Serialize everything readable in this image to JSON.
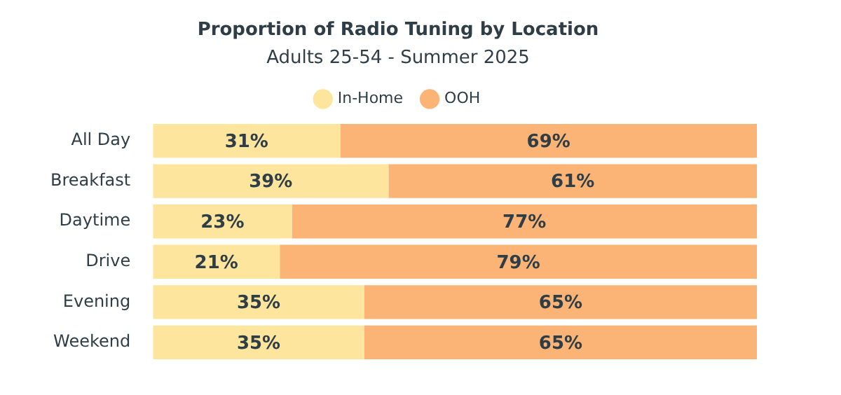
{
  "chart_data": {
    "type": "bar",
    "orientation": "horizontal",
    "stacked": true,
    "title": "Proportion of Radio Tuning by Location",
    "subtitle": "Adults 25-54 - Summer 2025",
    "categories": [
      "All Day",
      "Breakfast",
      "Daytime",
      "Drive",
      "Evening",
      "Weekend"
    ],
    "series": [
      {
        "name": "In-Home",
        "color": "#fde59d",
        "values": [
          31,
          39,
          23,
          21,
          35,
          35
        ],
        "value_labels": [
          "31%",
          "39%",
          "23%",
          "21%",
          "35%",
          "35%"
        ]
      },
      {
        "name": "OOH",
        "color": "#fbb475",
        "values": [
          69,
          61,
          77,
          79,
          65,
          65
        ],
        "value_labels": [
          "69%",
          "61%",
          "77%",
          "79%",
          "65%",
          "65%"
        ]
      }
    ],
    "legend": "top",
    "grid": false,
    "tick_labels": "y"
  }
}
